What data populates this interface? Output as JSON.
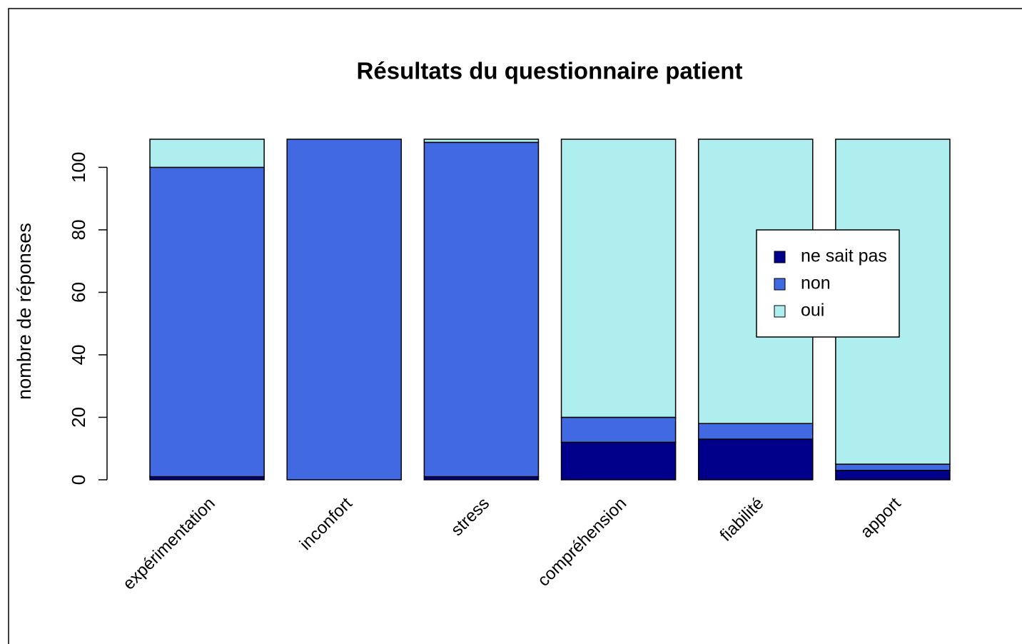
{
  "chart_data": {
    "type": "stacked_bar",
    "title": "Résultats du questionnaire patient",
    "y_label": "nombre de réponses",
    "categories": [
      "expérimentation",
      "inconfort",
      "stress",
      "compréhension",
      "fiabilité",
      "apport"
    ],
    "series": [
      {
        "name": "ne sait pas",
        "color": "#00008b",
        "values": [
          1,
          0,
          1,
          12,
          13,
          3
        ]
      },
      {
        "name": "non",
        "color": "#4169e1",
        "values": [
          99,
          109,
          107,
          8,
          5,
          2
        ]
      },
      {
        "name": "oui",
        "color": "#afeeee",
        "values": [
          9,
          0,
          1,
          89,
          91,
          104
        ]
      }
    ],
    "ylim": [
      0,
      109
    ],
    "yticks": [
      0,
      20,
      40,
      60,
      80,
      100
    ],
    "grid": false,
    "legend": "right"
  }
}
